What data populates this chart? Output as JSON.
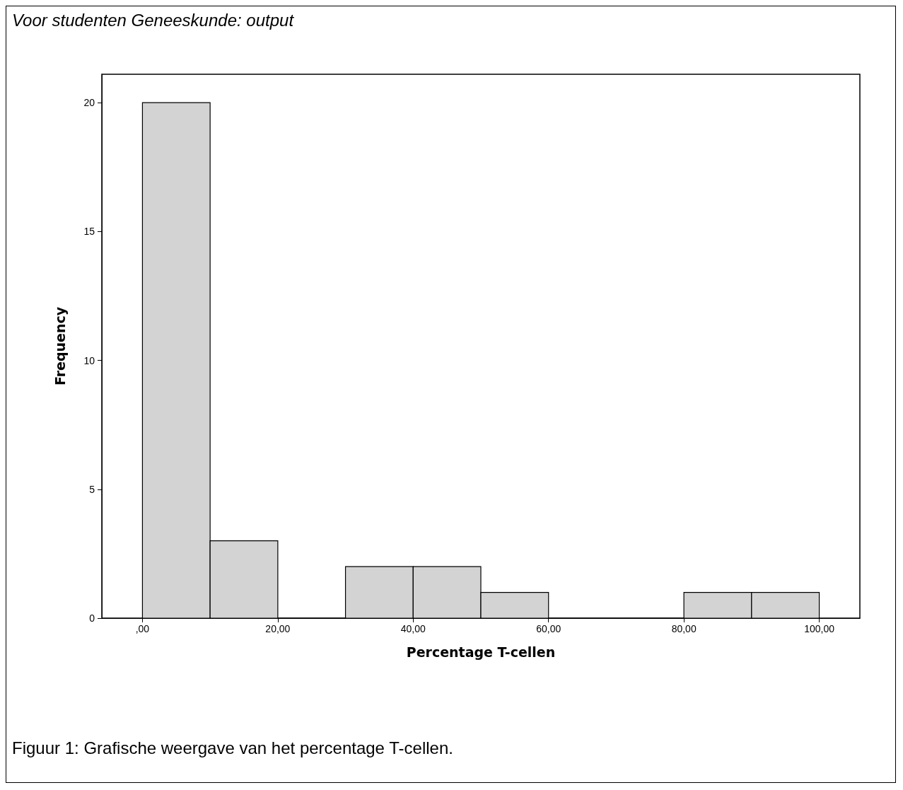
{
  "chart_data": {
    "type": "histogram",
    "title": "Voor studenten Geneeskunde: output",
    "xlabel": "Percentage T-cellen",
    "ylabel": "Frequency",
    "annotations": [
      "Figuur 1: Grafische weergave van het percentage T-cellen."
    ],
    "bins": [
      0,
      10,
      20,
      30,
      40,
      50,
      60,
      70,
      80,
      90,
      100
    ],
    "values": [
      20,
      3,
      0,
      2,
      2,
      1,
      0,
      0,
      1,
      1
    ],
    "color": "#d3d3d3",
    "xlim": [
      -6,
      106
    ],
    "xticks": [
      {
        "value": 0,
        "label": ",00"
      },
      {
        "value": 20,
        "label": "20,00"
      },
      {
        "value": 40,
        "label": "40,00"
      },
      {
        "value": 60,
        "label": "60,00"
      },
      {
        "value": 80,
        "label": "80,00"
      },
      {
        "value": 100,
        "label": "100,00"
      }
    ],
    "ylim": [
      0,
      21.1
    ],
    "yticks": [
      0,
      5,
      10,
      15,
      20
    ],
    "grid": false
  }
}
